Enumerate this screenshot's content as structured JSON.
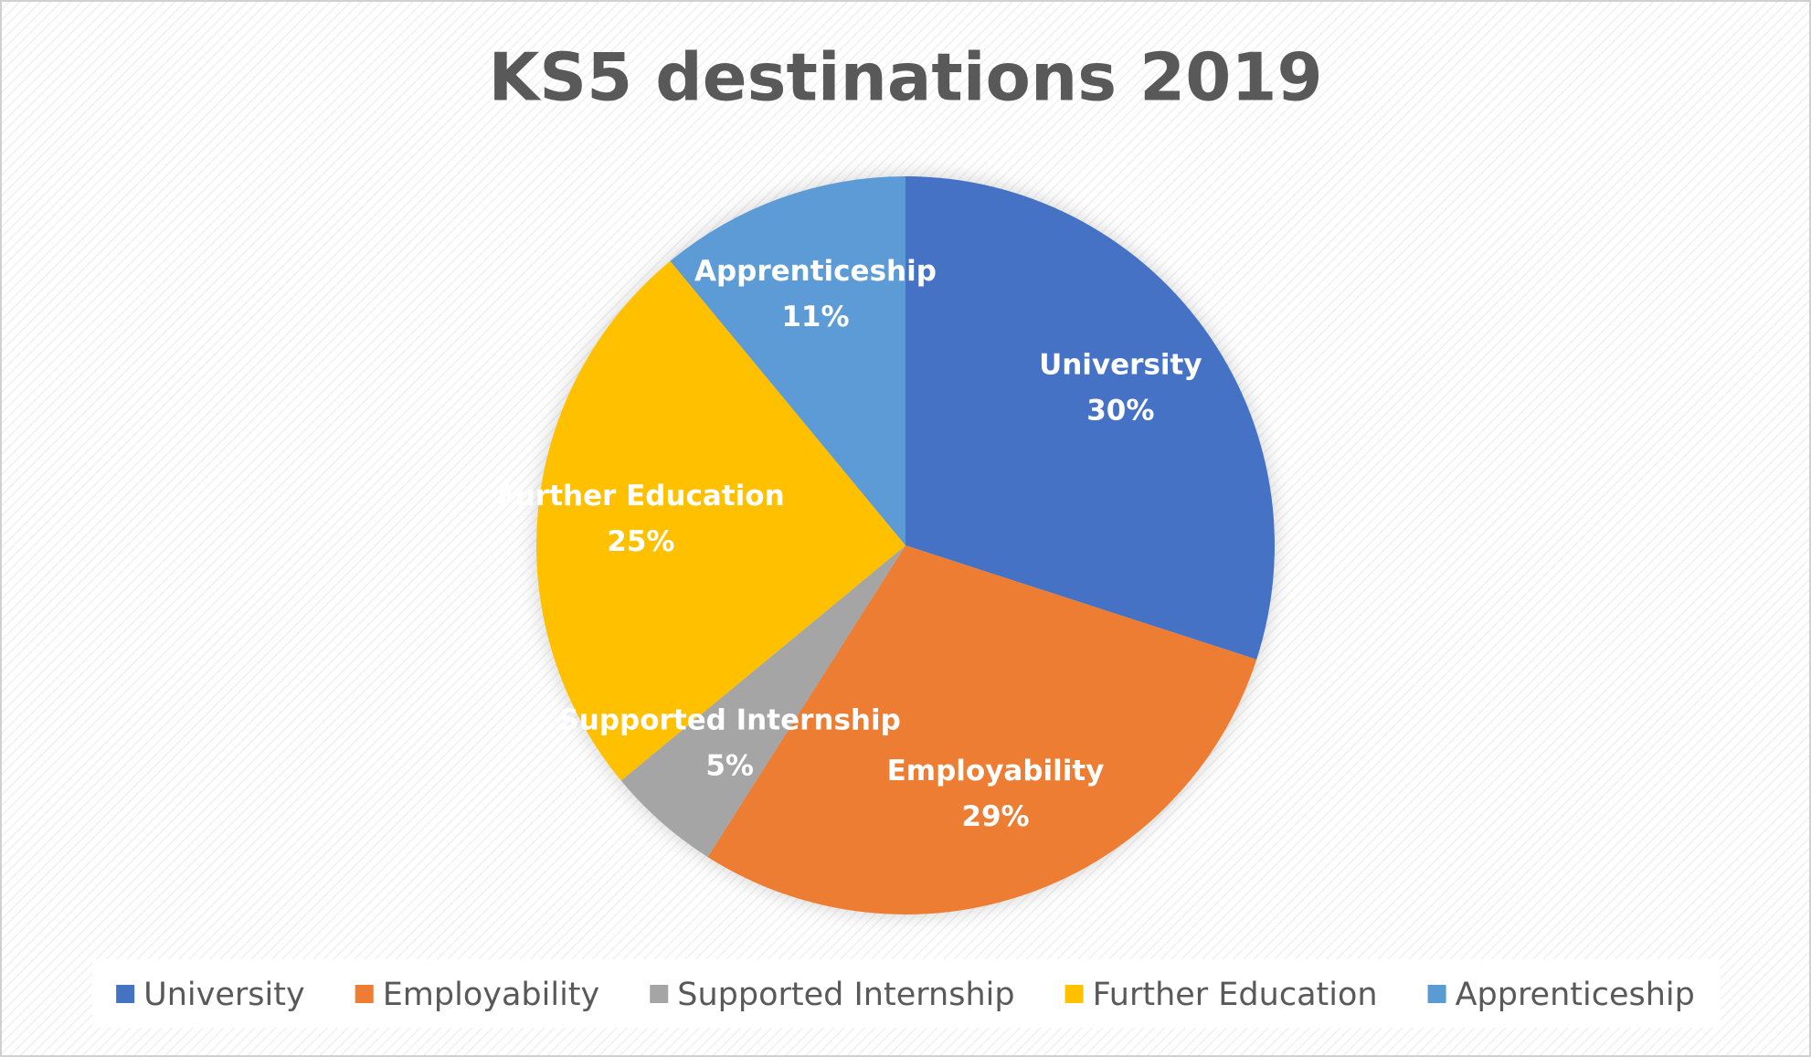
{
  "chart_data": {
    "type": "pie",
    "title": "KS5 destinations 2019",
    "categories": [
      "University",
      "Employability",
      "Supported Internship",
      "Further Education",
      "Apprenticeship"
    ],
    "values": [
      30,
      29,
      5,
      25,
      11
    ],
    "value_labels": [
      "30%",
      "29%",
      "5%",
      "25%",
      "11%"
    ],
    "colors": [
      "#4472c4",
      "#ed7d31",
      "#a5a5a5",
      "#ffc000",
      "#5b9bd5"
    ],
    "legend": "bottom"
  }
}
